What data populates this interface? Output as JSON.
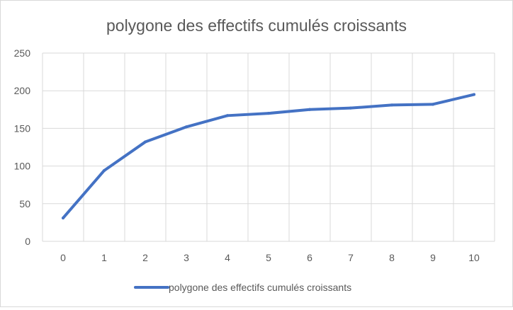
{
  "chart_data": {
    "type": "line",
    "title": "polygone des effectifs cumulés croissants",
    "xlabel": "",
    "ylabel": "",
    "categories": [
      "0",
      "1",
      "2",
      "3",
      "4",
      "5",
      "6",
      "7",
      "8",
      "9",
      "10"
    ],
    "series": [
      {
        "name": "polygone des effectifs cumulés croissants",
        "values": [
          31,
          94,
          132,
          152,
          167,
          170,
          175,
          177,
          181,
          182,
          195
        ],
        "color": "#4472c4"
      }
    ],
    "ylim": [
      0,
      250
    ],
    "yticks": [
      0,
      50,
      100,
      150,
      200,
      250
    ],
    "grid": true,
    "legend_position": "bottom"
  }
}
